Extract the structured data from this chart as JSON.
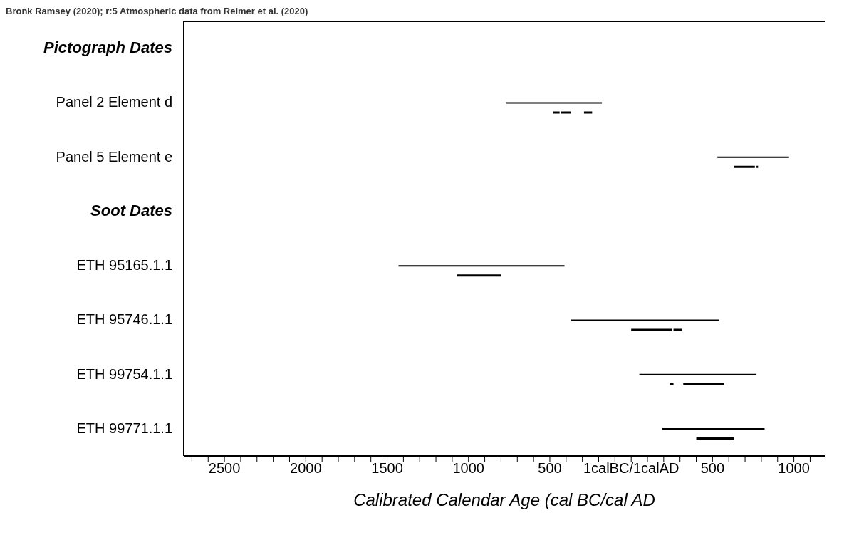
{
  "chart_data": {
    "type": "bar",
    "orientation": "horizontal",
    "title": "Bronk Ramsey (2020); r:5 Atmospheric data from Reimer et al. (2020)",
    "xlabel": "Calibrated Calendar Age (cal BC/cal AD",
    "categories": [
      "Pictograph Dates",
      "Panel 2 Element d",
      "Panel 5 Element e",
      "Soot Dates",
      "ETH 95165.1.1",
      "ETH 95746.1.1",
      "ETH 99754.1.1",
      "ETH 99771.1.1"
    ],
    "series": [
      {
        "color": "#000000",
        "base": [
          null,
          -770,
          530,
          null,
          -1430,
          -370,
          50,
          190
        ],
        "values": [
          null,
          590,
          440,
          null,
          1020,
          910,
          720,
          630
        ]
      },
      {
        "color": "#000000",
        "base": [
          null,
          -480,
          630,
          null,
          -1070,
          0,
          240,
          400
        ],
        "values": [
          null,
          40,
          130,
          null,
          270,
          250,
          20,
          230
        ]
      },
      {
        "color": "#000000",
        "base": [
          null,
          -430,
          770,
          null,
          null,
          260,
          320,
          null
        ],
        "values": [
          null,
          60,
          10,
          null,
          null,
          50,
          250,
          null
        ]
      },
      {
        "color": "#000000",
        "base": [
          null,
          -290,
          null,
          null,
          null,
          null,
          null,
          null
        ],
        "values": [
          null,
          50,
          null,
          null,
          null,
          null,
          null,
          null
        ]
      }
    ],
    "xlim": [
      -2750,
      1190
    ],
    "xticks": [
      {
        "value": -2700,
        "label": null
      },
      {
        "value": -2600,
        "label": null
      },
      {
        "value": -2500,
        "label": "2500"
      },
      {
        "value": -2400,
        "label": null
      },
      {
        "value": -2300,
        "label": null
      },
      {
        "value": -2200,
        "label": null
      },
      {
        "value": -2100,
        "label": null
      },
      {
        "value": -2000,
        "label": "2000"
      },
      {
        "value": -1900,
        "label": null
      },
      {
        "value": -1800,
        "label": null
      },
      {
        "value": -1700,
        "label": null
      },
      {
        "value": -1600,
        "label": null
      },
      {
        "value": -1500,
        "label": "1500"
      },
      {
        "value": -1400,
        "label": null
      },
      {
        "value": -1300,
        "label": null
      },
      {
        "value": -1200,
        "label": null
      },
      {
        "value": -1100,
        "label": null
      },
      {
        "value": -1000,
        "label": "1000"
      },
      {
        "value": -900,
        "label": null
      },
      {
        "value": -800,
        "label": null
      },
      {
        "value": -700,
        "label": null
      },
      {
        "value": -600,
        "label": null
      },
      {
        "value": -500,
        "label": "500"
      },
      {
        "value": -400,
        "label": null
      },
      {
        "value": -300,
        "label": null
      },
      {
        "value": -200,
        "label": null
      },
      {
        "value": -100,
        "label": null
      },
      {
        "value": 0,
        "label": "1calBC/1calAD"
      },
      {
        "value": 100,
        "label": null
      },
      {
        "value": 200,
        "label": null
      },
      {
        "value": 300,
        "label": null
      },
      {
        "value": 400,
        "label": null
      },
      {
        "value": 500,
        "label": "500"
      },
      {
        "value": 600,
        "label": null
      },
      {
        "value": 700,
        "label": null
      },
      {
        "value": 800,
        "label": null
      },
      {
        "value": 900,
        "label": null
      },
      {
        "value": 1000,
        "label": "1000"
      },
      {
        "value": 1100,
        "label": null
      }
    ],
    "grid": false,
    "legend": false
  }
}
